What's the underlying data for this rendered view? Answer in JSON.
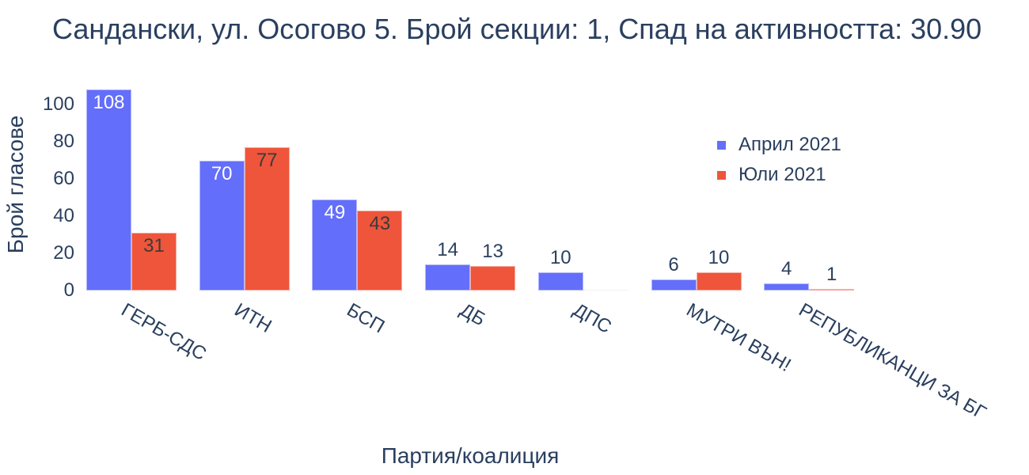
{
  "title": "Санданскi, ул. Осогово 5. Брой секции: 1,  Спад на активността: 30.90",
  "chart_data": {
    "type": "bar",
    "title": "Сандански, ул. Осогово 5. Брой секции: 1,  Спад на активността: 30.90",
    "xlabel": "Партия/коалиция",
    "ylabel": "Брой гласове",
    "categories": [
      "ГЕРБ-СДС",
      "ИТН",
      "БСП",
      "ДБ",
      "ДПС",
      "МУТРИ ВЪН!",
      "РЕПУБЛИКАНЦИ ЗА БГ"
    ],
    "series": [
      {
        "name": "Април 2021",
        "color": "#636efa",
        "values": [
          108,
          70,
          49,
          14,
          10,
          6,
          4
        ]
      },
      {
        "name": "Юли 2021",
        "color": "#ef553b",
        "values": [
          31,
          77,
          43,
          13,
          0,
          10,
          1
        ]
      }
    ],
    "yticks": [
      0,
      20,
      40,
      60,
      80,
      100
    ],
    "ylim": [
      0,
      108
    ],
    "grid": false,
    "legend_position": "top-right inside"
  },
  "legend": {
    "items": [
      {
        "label": "Април 2021",
        "color": "#636efa"
      },
      {
        "label": "Юли 2021",
        "color": "#ef553b"
      }
    ]
  }
}
